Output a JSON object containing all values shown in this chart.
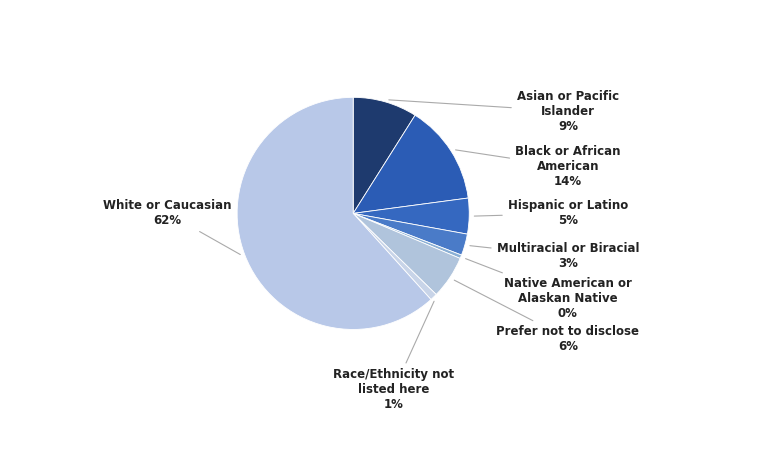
{
  "values": [
    9,
    14,
    5,
    3,
    0.5,
    6,
    1,
    62
  ],
  "colors": [
    "#1E3A6E",
    "#2B5CB5",
    "#3568C0",
    "#4A7BC8",
    "#8AAFD4",
    "#B0C4DC",
    "#C8D4E8",
    "#B8C8E8"
  ],
  "labels": [
    "Asian or Pacific\nIslander\n9%",
    "Black or African\nAmerican\n14%",
    "Hispanic or Latino\n5%",
    "Multiracial or Biracial\n3%",
    "Native American or\nAlaskan Native\n0%",
    "Prefer not to disclose\n6%",
    "Race/Ethnicity not\nlisted here\n1%",
    "White or Caucasian\n62%"
  ],
  "startangle": 90,
  "figsize": [
    7.76,
    4.5
  ],
  "dpi": 100,
  "fontsize": 8.5
}
